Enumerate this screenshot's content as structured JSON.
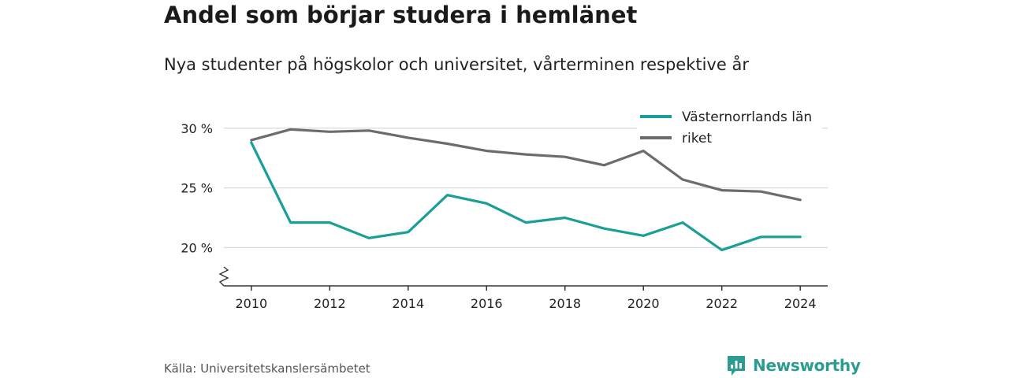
{
  "header": {
    "title": "Andel som börjar studera i hemlänet",
    "subtitle": "Nya studenter på högskolor och universitet, vårterminen respektive år"
  },
  "footer": {
    "source": "Källa: Universitetskanslersämbetet",
    "brand": "Newsworthy",
    "brand_color": "#2a9d90"
  },
  "chart_data": {
    "type": "line",
    "x": [
      2010,
      2011,
      2012,
      2013,
      2014,
      2015,
      2016,
      2017,
      2018,
      2019,
      2020,
      2021,
      2022,
      2023,
      2024
    ],
    "x_ticks": [
      2010,
      2012,
      2014,
      2016,
      2018,
      2020,
      2022,
      2024
    ],
    "y_ticks": [
      20,
      25,
      30
    ],
    "y_tick_labels": [
      "20 %",
      "25 %",
      "30 %"
    ],
    "ylim": [
      16.8,
      31.5
    ],
    "y_axis_break": true,
    "grid": "horizontal",
    "legend_position": "top-right",
    "series": [
      {
        "name": "Västernorrlands län",
        "color": "#1a9e96",
        "values": [
          28.8,
          22.1,
          22.1,
          20.8,
          21.3,
          24.4,
          23.7,
          22.1,
          22.5,
          21.6,
          21.0,
          22.1,
          19.8,
          20.9,
          20.9
        ]
      },
      {
        "name": "riket",
        "color": "#6d6b70",
        "values": [
          29.0,
          29.9,
          29.7,
          29.8,
          29.2,
          28.7,
          28.1,
          27.8,
          27.6,
          26.9,
          28.1,
          25.7,
          24.8,
          24.7,
          24.0
        ]
      }
    ]
  }
}
